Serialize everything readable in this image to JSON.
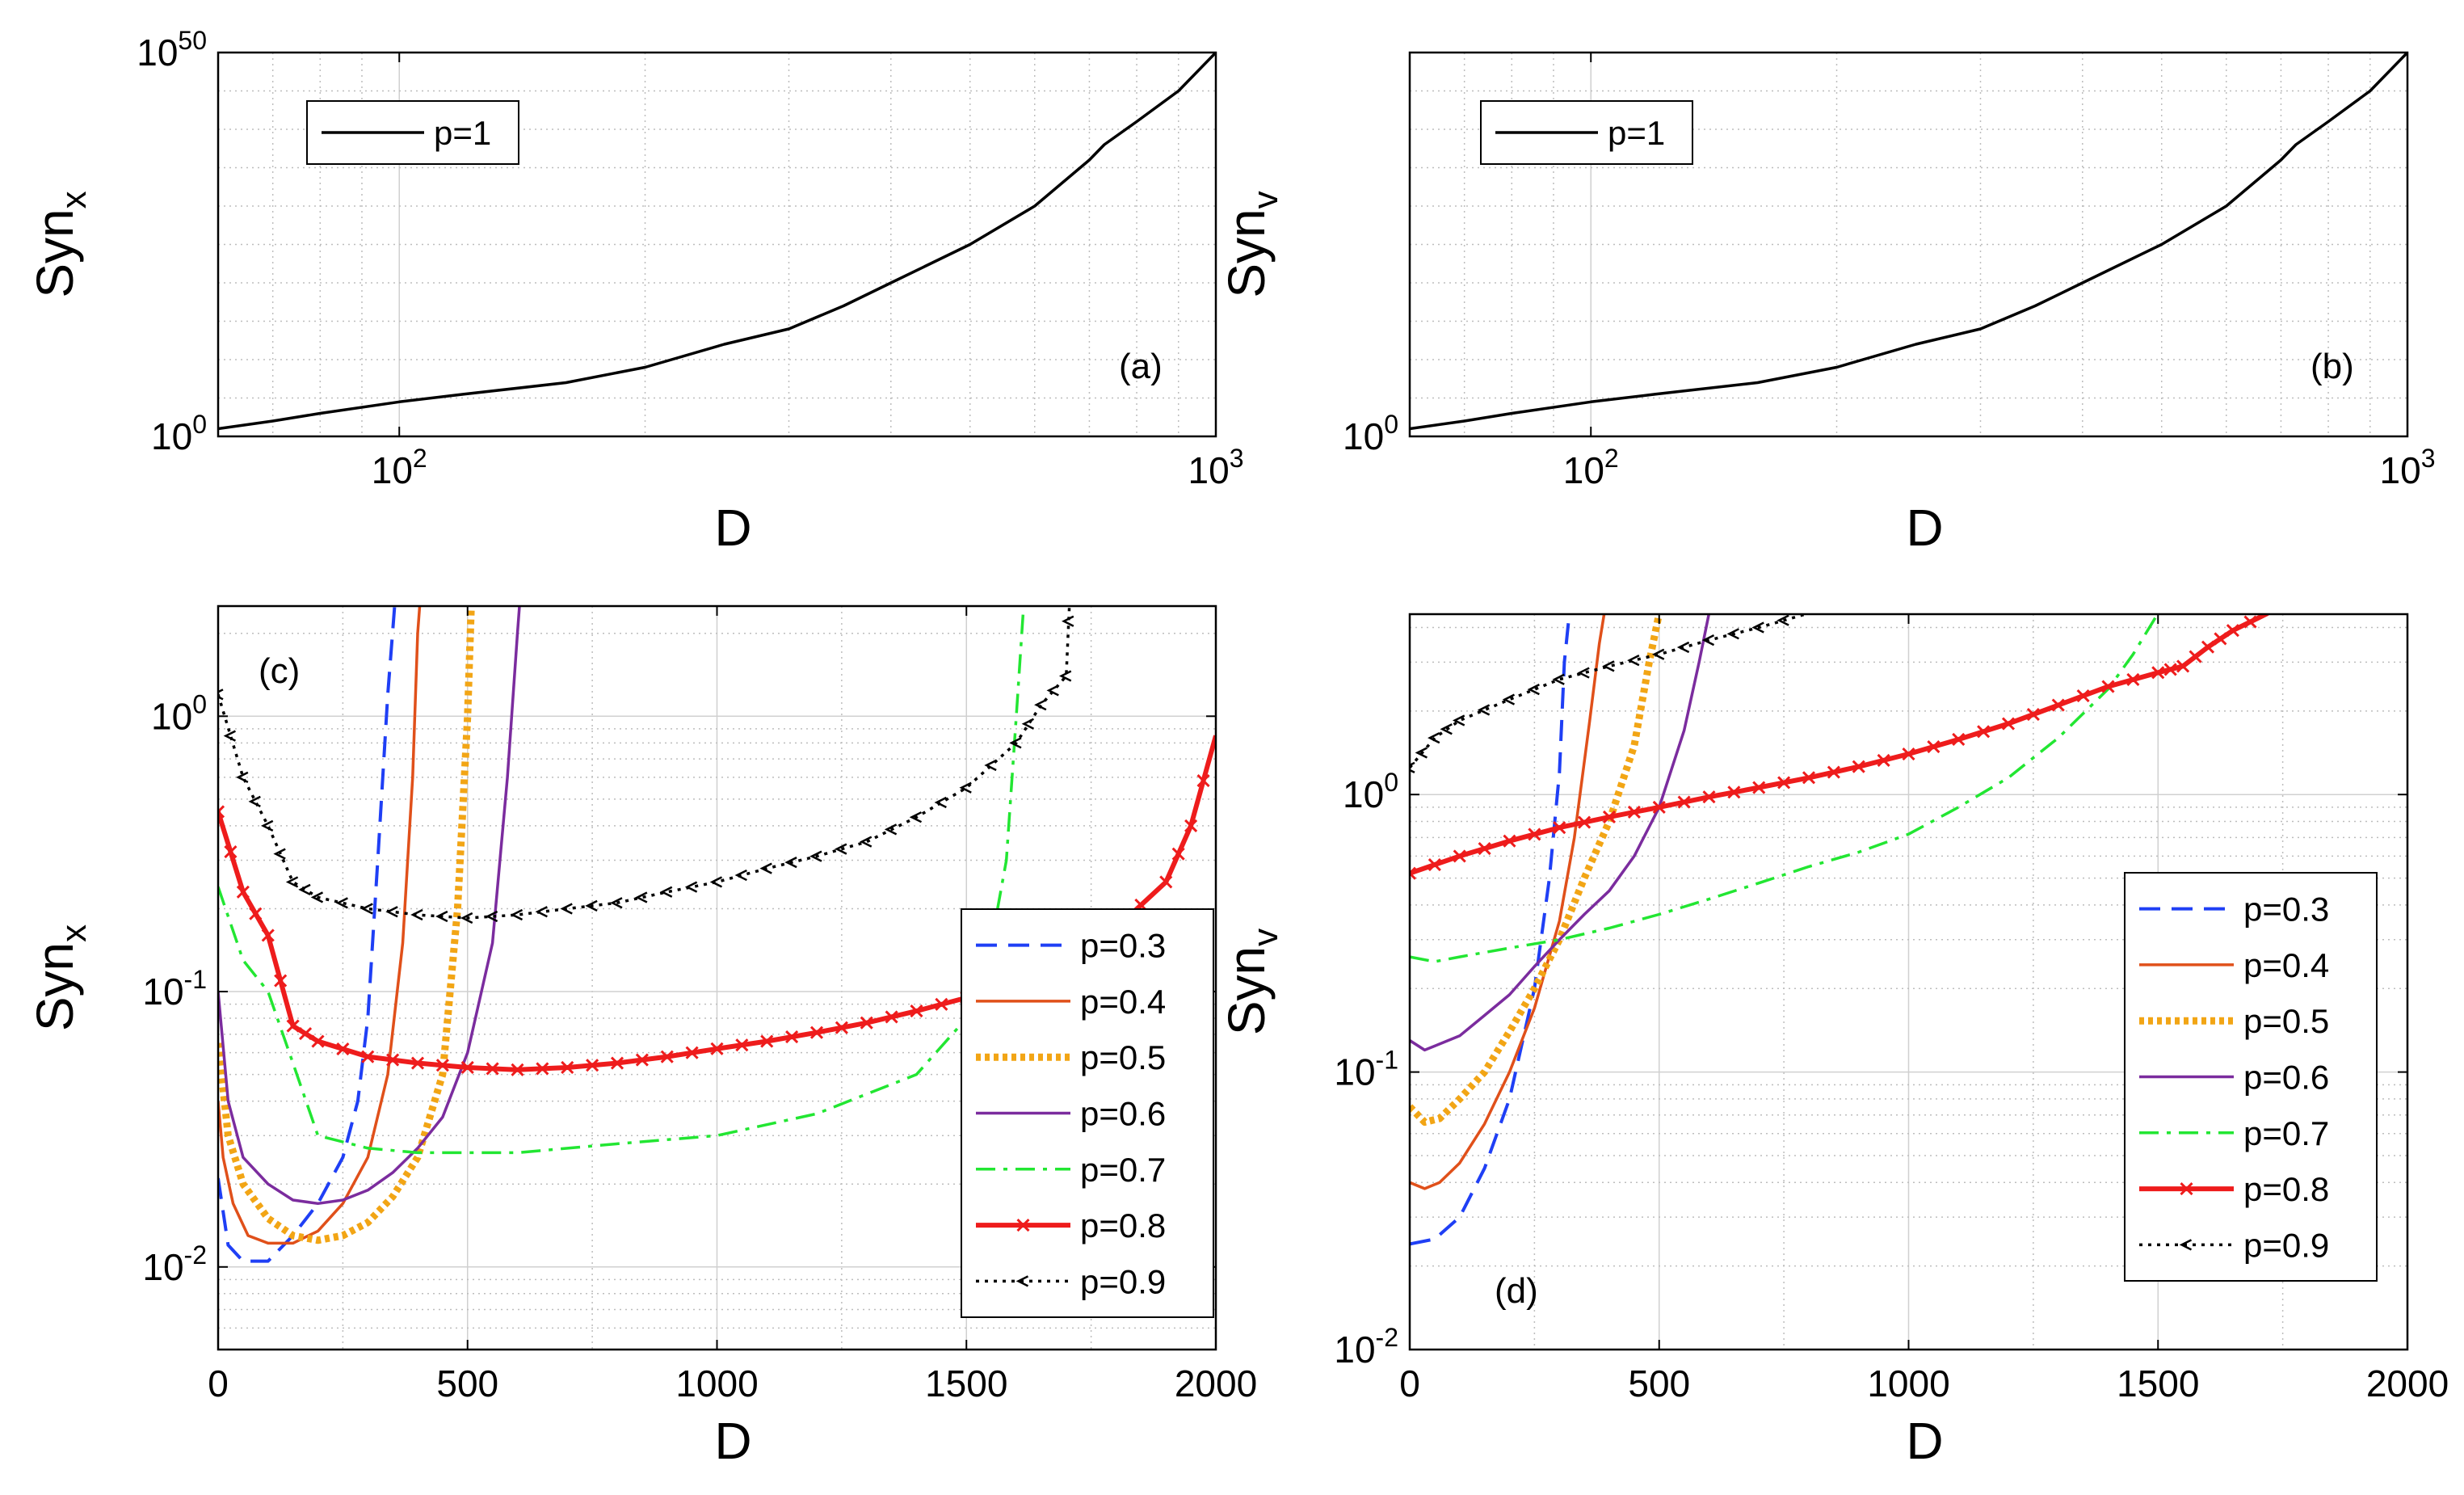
{
  "figure": {
    "colors": {
      "axis": "#000000",
      "grid": "#d0d0d0",
      "minor_grid": "#bdbdbd",
      "background": "#ffffff"
    }
  },
  "chart_data": [
    {
      "id": "a",
      "type": "line",
      "panel_label": "(a)",
      "xlabel": "D",
      "ylabel_main": "Syn",
      "ylabel_sub": "x",
      "xscale": "log",
      "yscale": "log",
      "xlim": [
        60,
        1000
      ],
      "ylim_exp": [
        0,
        50
      ],
      "x_ticks": [
        {
          "v": 100,
          "base": "10",
          "exp": "2"
        },
        {
          "v": 1000,
          "base": "10",
          "exp": "3"
        }
      ],
      "y_ticks": [
        {
          "e": 0,
          "base": "10",
          "exp": "0"
        },
        {
          "e": 50,
          "base": "10",
          "exp": "50"
        }
      ],
      "legend_position": "top-left",
      "series": [
        {
          "name": "p=1",
          "color": "#000000",
          "style": "solid",
          "x": [
            60,
            70,
            80,
            100,
            120,
            160,
            200,
            250,
            300,
            350,
            400,
            500,
            600,
            700,
            730,
            800,
            900,
            1000
          ],
          "y_log10": [
            1,
            2,
            3,
            4.5,
            5.5,
            7,
            9,
            12,
            14,
            17,
            20,
            25,
            30,
            36,
            38,
            41,
            45,
            50
          ]
        }
      ]
    },
    {
      "id": "b",
      "type": "line",
      "panel_label": "(b)",
      "xlabel": "D",
      "ylabel_main": "Syn",
      "ylabel_sub": "v",
      "xscale": "log",
      "yscale": "log",
      "xlim": [
        60,
        1000
      ],
      "ylim_exp": [
        0,
        50
      ],
      "x_ticks": [
        {
          "v": 100,
          "base": "10",
          "exp": "2"
        },
        {
          "v": 1000,
          "base": "10",
          "exp": "3"
        }
      ],
      "y_ticks": [
        {
          "e": 0,
          "base": "10",
          "exp": "0"
        }
      ],
      "legend_position": "top-left",
      "series": [
        {
          "name": "p=1",
          "color": "#000000",
          "style": "solid",
          "x": [
            60,
            70,
            80,
            100,
            120,
            160,
            200,
            250,
            300,
            350,
            400,
            500,
            600,
            700,
            730,
            800,
            900,
            1000
          ],
          "y_log10": [
            1,
            2,
            3,
            4.5,
            5.5,
            7,
            9,
            12,
            14,
            17,
            20,
            25,
            30,
            36,
            38,
            41,
            45,
            50
          ]
        }
      ]
    },
    {
      "id": "c",
      "type": "line",
      "panel_label": "(c)",
      "xlabel": "D",
      "ylabel_main": "Syn",
      "ylabel_sub": "x",
      "xscale": "linear",
      "yscale": "log",
      "xlim": [
        0,
        2000
      ],
      "ylim_exp": [
        -2.3,
        0.4
      ],
      "x_ticks": [
        {
          "v": 0,
          "label": "0"
        },
        {
          "v": 500,
          "label": "500"
        },
        {
          "v": 1000,
          "label": "1000"
        },
        {
          "v": 1500,
          "label": "1500"
        },
        {
          "v": 2000,
          "label": "2000"
        }
      ],
      "y_ticks": [
        {
          "e": -2,
          "base": "10",
          "exp": "-2"
        },
        {
          "e": -1,
          "base": "10",
          "exp": "-1"
        },
        {
          "e": 0,
          "base": "10",
          "exp": "0"
        }
      ],
      "legend_position": "right",
      "series": [
        {
          "name": "p=0.3",
          "color": "#1f3ff5",
          "style": "dashed",
          "x": [
            0,
            20,
            50,
            100,
            150,
            200,
            250,
            280,
            300,
            320,
            340,
            360
          ],
          "y": [
            0.021,
            0.012,
            0.0105,
            0.0105,
            0.013,
            0.017,
            0.025,
            0.04,
            0.08,
            0.3,
            1.2,
            3.5
          ]
        },
        {
          "name": "p=0.4",
          "color": "#e0501a",
          "style": "solid",
          "x": [
            0,
            10,
            30,
            60,
            100,
            150,
            200,
            250,
            300,
            340,
            370,
            390,
            400,
            410
          ],
          "y": [
            0.04,
            0.025,
            0.017,
            0.013,
            0.0122,
            0.0122,
            0.0135,
            0.017,
            0.025,
            0.05,
            0.15,
            0.6,
            2,
            3.5
          ]
        },
        {
          "name": "p=0.5",
          "color": "#f2a515",
          "style": "thick-dotted",
          "x": [
            0,
            20,
            50,
            100,
            150,
            200,
            250,
            300,
            350,
            400,
            450,
            480,
            500,
            510
          ],
          "y": [
            0.065,
            0.03,
            0.02,
            0.015,
            0.013,
            0.0125,
            0.013,
            0.0145,
            0.018,
            0.025,
            0.05,
            0.2,
            1,
            3.5
          ]
        },
        {
          "name": "p=0.6",
          "color": "#7b2c9e",
          "style": "solid",
          "x": [
            0,
            20,
            50,
            100,
            150,
            200,
            250,
            300,
            350,
            400,
            450,
            500,
            550,
            580,
            600,
            610
          ],
          "y": [
            0.1,
            0.04,
            0.025,
            0.02,
            0.0175,
            0.017,
            0.0175,
            0.019,
            0.022,
            0.027,
            0.035,
            0.06,
            0.15,
            0.6,
            2,
            3.5
          ]
        },
        {
          "name": "p=0.7",
          "color": "#22e632",
          "style": "dashdot",
          "x": [
            0,
            50,
            100,
            150,
            200,
            300,
            400,
            500,
            600,
            800,
            1000,
            1200,
            1400,
            1500,
            1550,
            1580,
            1600,
            1620
          ],
          "y": [
            0.24,
            0.13,
            0.1,
            0.055,
            0.03,
            0.027,
            0.026,
            0.026,
            0.026,
            0.028,
            0.03,
            0.036,
            0.05,
            0.08,
            0.15,
            0.3,
            1,
            3.5
          ]
        },
        {
          "name": "p=0.8",
          "color": "#ee1c1c",
          "style": "solid-x",
          "x": [
            0,
            50,
            100,
            150,
            200,
            300,
            400,
            500,
            600,
            700,
            800,
            900,
            1000,
            1100,
            1200,
            1300,
            1400,
            1500,
            1600,
            1700,
            1800,
            1900,
            1950,
            2000
          ],
          "y": [
            0.45,
            0.23,
            0.16,
            0.075,
            0.066,
            0.058,
            0.055,
            0.053,
            0.052,
            0.053,
            0.055,
            0.058,
            0.062,
            0.066,
            0.071,
            0.077,
            0.085,
            0.095,
            0.11,
            0.13,
            0.17,
            0.25,
            0.4,
            0.85
          ]
        },
        {
          "name": "p=0.9",
          "color": "#000000",
          "style": "dotted-marker",
          "x": [
            0,
            50,
            100,
            150,
            200,
            300,
            400,
            500,
            600,
            700,
            800,
            900,
            1000,
            1100,
            1200,
            1300,
            1400,
            1500,
            1600,
            1650,
            1700,
            1710
          ],
          "y": [
            1.2,
            0.6,
            0.4,
            0.25,
            0.22,
            0.2,
            0.19,
            0.185,
            0.19,
            0.2,
            0.21,
            0.23,
            0.25,
            0.28,
            0.31,
            0.35,
            0.43,
            0.55,
            0.8,
            1.1,
            1.4,
            3.5
          ]
        }
      ]
    },
    {
      "id": "d",
      "type": "line",
      "panel_label": "(d)",
      "xlabel": "D",
      "ylabel_main": "Syn",
      "ylabel_sub": "v",
      "xscale": "linear",
      "yscale": "log",
      "xlim": [
        0,
        2000
      ],
      "ylim_exp": [
        -2,
        0.65
      ],
      "x_ticks": [
        {
          "v": 0,
          "label": "0"
        },
        {
          "v": 500,
          "label": "500"
        },
        {
          "v": 1000,
          "label": "1000"
        },
        {
          "v": 1500,
          "label": "1500"
        },
        {
          "v": 2000,
          "label": "2000"
        }
      ],
      "y_ticks": [
        {
          "e": -2,
          "base": "10",
          "exp": "-2"
        },
        {
          "e": -1,
          "base": "10",
          "exp": "-1"
        },
        {
          "e": 0,
          "base": "10",
          "exp": "0"
        }
      ],
      "legend_position": "right",
      "series": [
        {
          "name": "p=0.3",
          "color": "#1f3ff5",
          "style": "dashed",
          "x": [
            0,
            50,
            100,
            150,
            200,
            250,
            280,
            300,
            310,
            320
          ],
          "y": [
            0.024,
            0.025,
            0.03,
            0.045,
            0.08,
            0.2,
            0.5,
            1.2,
            3,
            4.5
          ]
        },
        {
          "name": "p=0.4",
          "color": "#e0501a",
          "style": "solid",
          "x": [
            0,
            30,
            60,
            100,
            150,
            200,
            250,
            300,
            330,
            360,
            380,
            390
          ],
          "y": [
            0.04,
            0.038,
            0.04,
            0.047,
            0.065,
            0.1,
            0.17,
            0.35,
            0.7,
            1.8,
            3.5,
            4.5
          ]
        },
        {
          "name": "p=0.5",
          "color": "#f2a515",
          "style": "thick-dotted",
          "x": [
            0,
            30,
            60,
            100,
            150,
            200,
            250,
            300,
            350,
            400,
            450,
            480,
            500
          ],
          "y": [
            0.075,
            0.066,
            0.068,
            0.08,
            0.1,
            0.14,
            0.2,
            0.3,
            0.5,
            0.8,
            1.5,
            3,
            4.5
          ]
        },
        {
          "name": "p=0.6",
          "color": "#7b2c9e",
          "style": "solid",
          "x": [
            0,
            30,
            100,
            150,
            200,
            250,
            300,
            350,
            400,
            450,
            500,
            550,
            580,
            600
          ],
          "y": [
            0.13,
            0.12,
            0.135,
            0.16,
            0.19,
            0.24,
            0.3,
            0.37,
            0.45,
            0.6,
            0.9,
            1.7,
            3,
            4.5
          ]
        },
        {
          "name": "p=0.7",
          "color": "#22e632",
          "style": "dashdot",
          "x": [
            0,
            50,
            100,
            200,
            300,
            400,
            500,
            600,
            700,
            800,
            900,
            1000,
            1100,
            1200,
            1300,
            1400,
            1450,
            1500
          ],
          "y": [
            0.26,
            0.25,
            0.26,
            0.28,
            0.3,
            0.33,
            0.37,
            0.42,
            0.48,
            0.55,
            0.62,
            0.72,
            0.9,
            1.15,
            1.6,
            2.4,
            3.2,
            4.5
          ]
        },
        {
          "name": "p=0.8",
          "color": "#ee1c1c",
          "style": "solid-x",
          "x": [
            0,
            100,
            200,
            300,
            400,
            500,
            600,
            700,
            800,
            900,
            1000,
            1100,
            1200,
            1300,
            1400,
            1500,
            1550,
            1600,
            1650,
            1720
          ],
          "y": [
            0.52,
            0.6,
            0.68,
            0.76,
            0.83,
            0.9,
            0.98,
            1.06,
            1.15,
            1.26,
            1.4,
            1.58,
            1.8,
            2.1,
            2.45,
            2.75,
            2.9,
            3.4,
            3.9,
            4.5
          ]
        },
        {
          "name": "p=0.9",
          "color": "#000000",
          "style": "dotted-marker",
          "x": [
            0,
            50,
            100,
            200,
            300,
            400,
            500,
            600,
            700,
            800
          ],
          "y": [
            1.25,
            1.6,
            1.85,
            2.2,
            2.6,
            2.9,
            3.2,
            3.6,
            4.0,
            4.5
          ]
        }
      ]
    }
  ]
}
